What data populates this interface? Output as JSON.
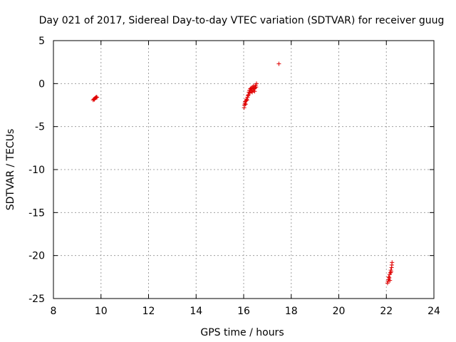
{
  "chart_data": {
    "type": "scatter",
    "title": "Day 021 of 2017, Sidereal Day-to-day VTEC variation (SDTVAR) for receiver guug",
    "xlabel": "GPS time / hours",
    "ylabel": "SDTVAR / TECUs",
    "xlim": [
      8,
      24
    ],
    "ylim": [
      -25,
      5
    ],
    "xticks": [
      8,
      10,
      12,
      14,
      16,
      18,
      20,
      22,
      24
    ],
    "yticks": [
      5,
      0,
      -5,
      -10,
      -15,
      -20,
      -25
    ],
    "grid": true,
    "marker": "+",
    "series": [
      {
        "name": "SDTVAR",
        "color": "#e00000",
        "points": [
          [
            9.67,
            -1.9
          ],
          [
            9.7,
            -1.8
          ],
          [
            9.72,
            -1.85
          ],
          [
            9.75,
            -1.7
          ],
          [
            9.78,
            -1.65
          ],
          [
            9.8,
            -1.55
          ],
          [
            9.83,
            -1.6
          ],
          [
            16.02,
            -2.8
          ],
          [
            16.03,
            -2.5
          ],
          [
            16.05,
            -2.3
          ],
          [
            16.06,
            -2.1
          ],
          [
            16.08,
            -2.4
          ],
          [
            16.1,
            -2.0
          ],
          [
            16.12,
            -1.8
          ],
          [
            16.14,
            -1.9
          ],
          [
            16.16,
            -1.6
          ],
          [
            16.18,
            -1.4
          ],
          [
            16.2,
            -1.3
          ],
          [
            16.22,
            -1.0
          ],
          [
            16.24,
            -0.8
          ],
          [
            16.26,
            -1.1
          ],
          [
            16.28,
            -0.6
          ],
          [
            16.3,
            -0.9
          ],
          [
            16.32,
            -0.5
          ],
          [
            16.34,
            -0.7
          ],
          [
            16.36,
            -1.0
          ],
          [
            16.38,
            -0.4
          ],
          [
            16.4,
            -0.8
          ],
          [
            16.42,
            -0.3
          ],
          [
            16.44,
            -0.6
          ],
          [
            16.46,
            -0.9
          ],
          [
            16.48,
            -0.5
          ],
          [
            16.5,
            -0.2
          ],
          [
            16.52,
            -0.4
          ],
          [
            16.54,
            0.0
          ],
          [
            17.48,
            2.3
          ],
          [
            22.05,
            -23.2
          ],
          [
            22.07,
            -23.0
          ],
          [
            22.09,
            -22.8
          ],
          [
            22.1,
            -22.5
          ],
          [
            22.12,
            -22.6
          ],
          [
            22.14,
            -22.2
          ],
          [
            22.15,
            -22.9
          ],
          [
            22.17,
            -22.0
          ],
          [
            22.19,
            -21.7
          ],
          [
            22.2,
            -21.9
          ],
          [
            22.22,
            -21.4
          ],
          [
            22.23,
            -21.1
          ],
          [
            22.24,
            -20.8
          ]
        ]
      }
    ]
  }
}
